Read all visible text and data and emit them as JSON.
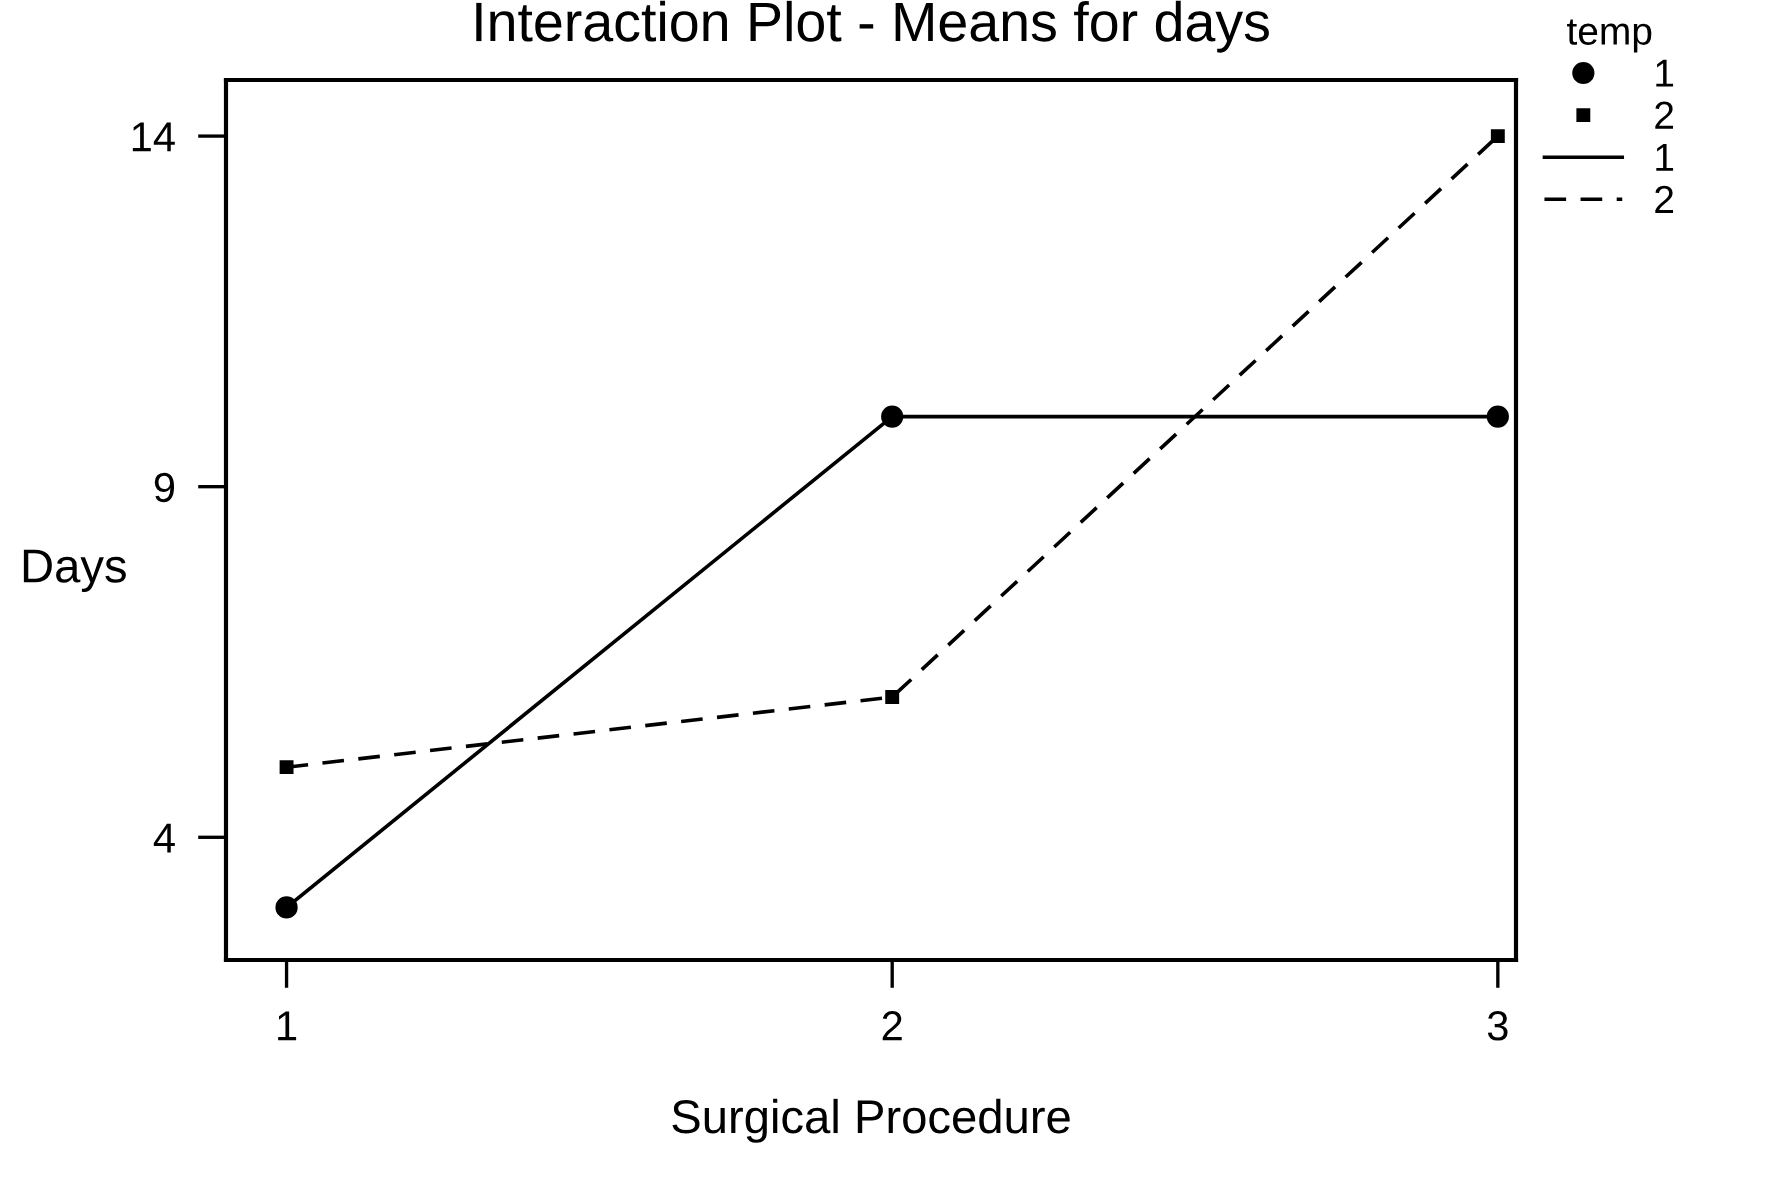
{
  "chart_data": {
    "type": "line",
    "title": "Interaction Plot - Means for days",
    "xlabel": "Surgical Procedure",
    "ylabel": "Days",
    "legend_title": "temp",
    "categories": [
      "1",
      "2",
      "3"
    ],
    "series": [
      {
        "name": "1",
        "color": "#000000",
        "values": [
          3,
          10,
          10
        ],
        "line_style": "solid",
        "marker": "circle"
      },
      {
        "name": "2",
        "color": "#000000",
        "values": [
          5,
          6,
          14
        ],
        "line_style": "dashed",
        "marker": "square"
      }
    ],
    "ylim": [
      2.25,
      14.8
    ],
    "yticks": [
      4,
      9,
      14
    ],
    "grid": false,
    "legend": "top right"
  }
}
